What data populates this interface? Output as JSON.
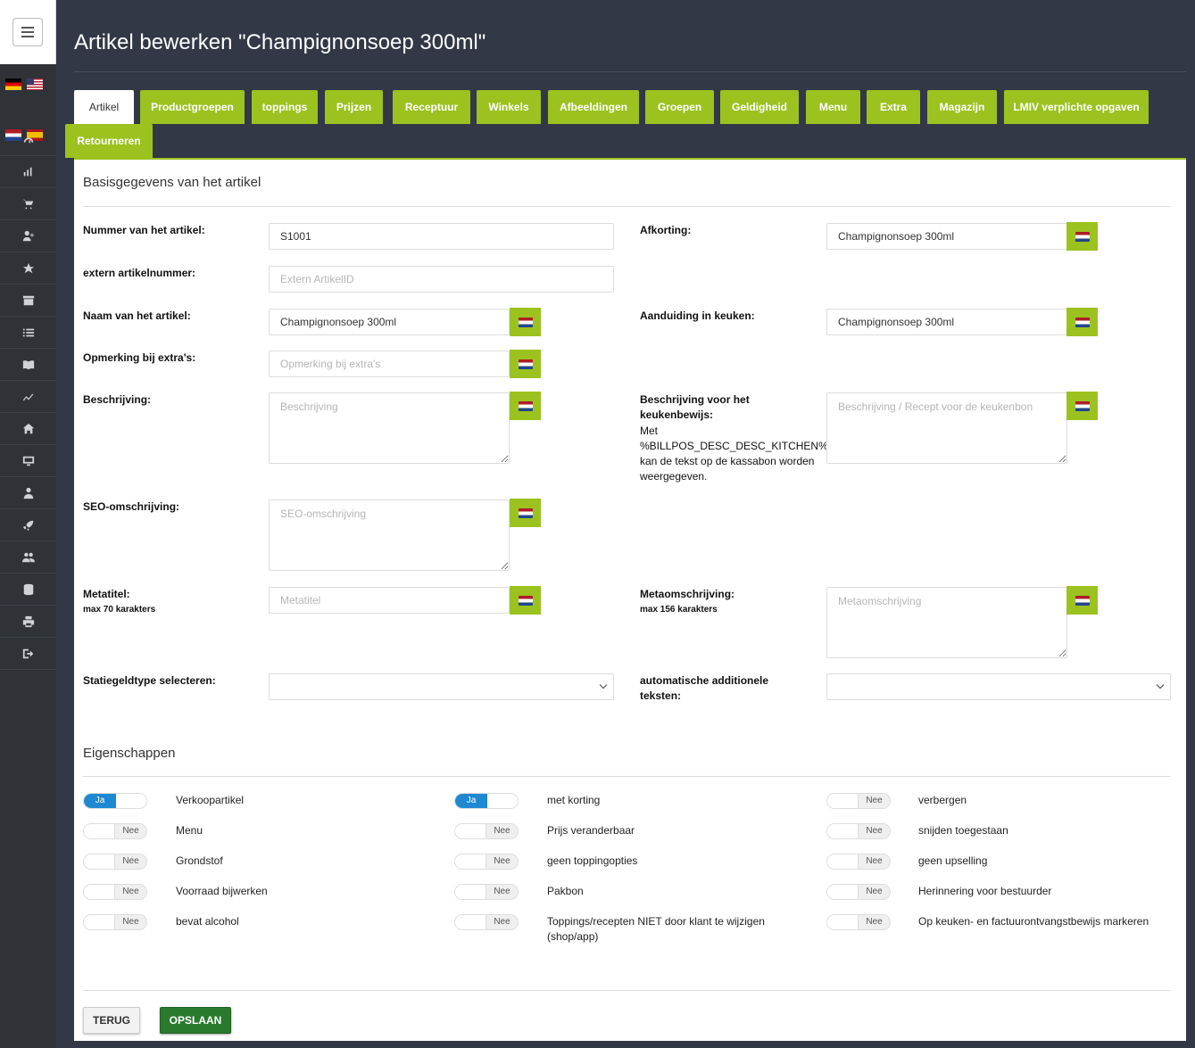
{
  "page": {
    "title": "Artikel bewerken \"Champignonsoep 300ml\""
  },
  "sidebar": {
    "icons": [
      "speedometer-icon",
      "bar-chart-icon",
      "cart-icon",
      "user-plus-icon",
      "star-icon",
      "archive-icon",
      "list-icon",
      "book-icon",
      "line-chart-icon",
      "home-icon",
      "monitor-icon",
      "user-icon",
      "rocket-icon",
      "users-icon",
      "database-icon",
      "printer-icon",
      "logout-icon"
    ]
  },
  "tabs": [
    "Artikel",
    "Productgroepen",
    "toppings",
    "Prijzen",
    "Receptuur",
    "Winkels",
    "Afbeeldingen",
    "Groepen",
    "Geldigheid",
    "Menu",
    "Extra",
    "Magazijn",
    "LMIV verplichte opgaven",
    "Retourneren"
  ],
  "basis": {
    "title": "Basisgegevens van het artikel",
    "nummer_label": "Nummer van het artikel:",
    "nummer_value": "S1001",
    "extern_label": "extern artikelnummer:",
    "extern_placeholder": "Extern ArtikelID",
    "naam_label": "Naam van het artikel:",
    "naam_value": "Champignonsoep 300ml",
    "opmerking_label": "Opmerking bij extra's:",
    "opmerking_placeholder": "Opmerking bij extra's",
    "beschrijving_label": "Beschrijving:",
    "beschrijving_placeholder": "Beschrijving",
    "seo_label": "SEO-omschrijving:",
    "seo_placeholder": "SEO-omschrijving",
    "metatitel_label": "Metatitel:",
    "metatitel_hint": "max 70 karakters",
    "metatitel_placeholder": "Metatitel",
    "statiegeld_label": "Statiegeldtype selecteren:",
    "afkorting_label": "Afkorting:",
    "afkorting_value": "Champignonsoep 300ml",
    "keuken_label": "Aanduiding in keuken:",
    "keuken_value": "Champignonsoep 300ml",
    "bon_label": "Beschrijving voor het keukenbewijs:",
    "bon_note": "Met %BILLPOS_DESC_DESC_KITCHEN% kan de tekst op de kassabon worden weergegeven.",
    "bon_placeholder": "Beschrijving / Recept voor de keukenbon",
    "metaomschrijving_label": "Metaomschrijving:",
    "metaomschrijving_hint": "max 156 karakters",
    "metaomschrijving_placeholder": "Metaomschrijving",
    "auto_label": "automatische additionele teksten:"
  },
  "eigenschappen": {
    "title": "Eigenschappen",
    "on_text": "Ja",
    "off_text": "Nee",
    "col1": [
      {
        "label": "Verkoopartikel",
        "on": true
      },
      {
        "label": "Menu",
        "on": false
      },
      {
        "label": "Grondstof",
        "on": false
      },
      {
        "label": "Voorraad bijwerken",
        "on": false
      },
      {
        "label": "bevat alcohol",
        "on": false
      }
    ],
    "col2": [
      {
        "label": "met korting",
        "on": true
      },
      {
        "label": "Prijs veranderbaar",
        "on": false
      },
      {
        "label": "geen toppingopties",
        "on": false
      },
      {
        "label": "Pakbon",
        "on": false
      },
      {
        "label": "Toppings/recepten NIET door klant te wijzigen (shop/app)",
        "on": false
      }
    ],
    "col3": [
      {
        "label": "verbergen",
        "on": false
      },
      {
        "label": "snijden toegestaan",
        "on": false
      },
      {
        "label": "geen upselling",
        "on": false
      },
      {
        "label": "Herinnering voor bestuurder",
        "on": false
      },
      {
        "label": "Op keuken- en factuurontvangstbewijs markeren",
        "on": false
      }
    ]
  },
  "actions": {
    "back": "TERUG",
    "save": "OPSLAAN"
  },
  "colors": {
    "accent": "#9bc21f",
    "toggle_on": "#1e88d2",
    "save": "#2a7a2e"
  }
}
